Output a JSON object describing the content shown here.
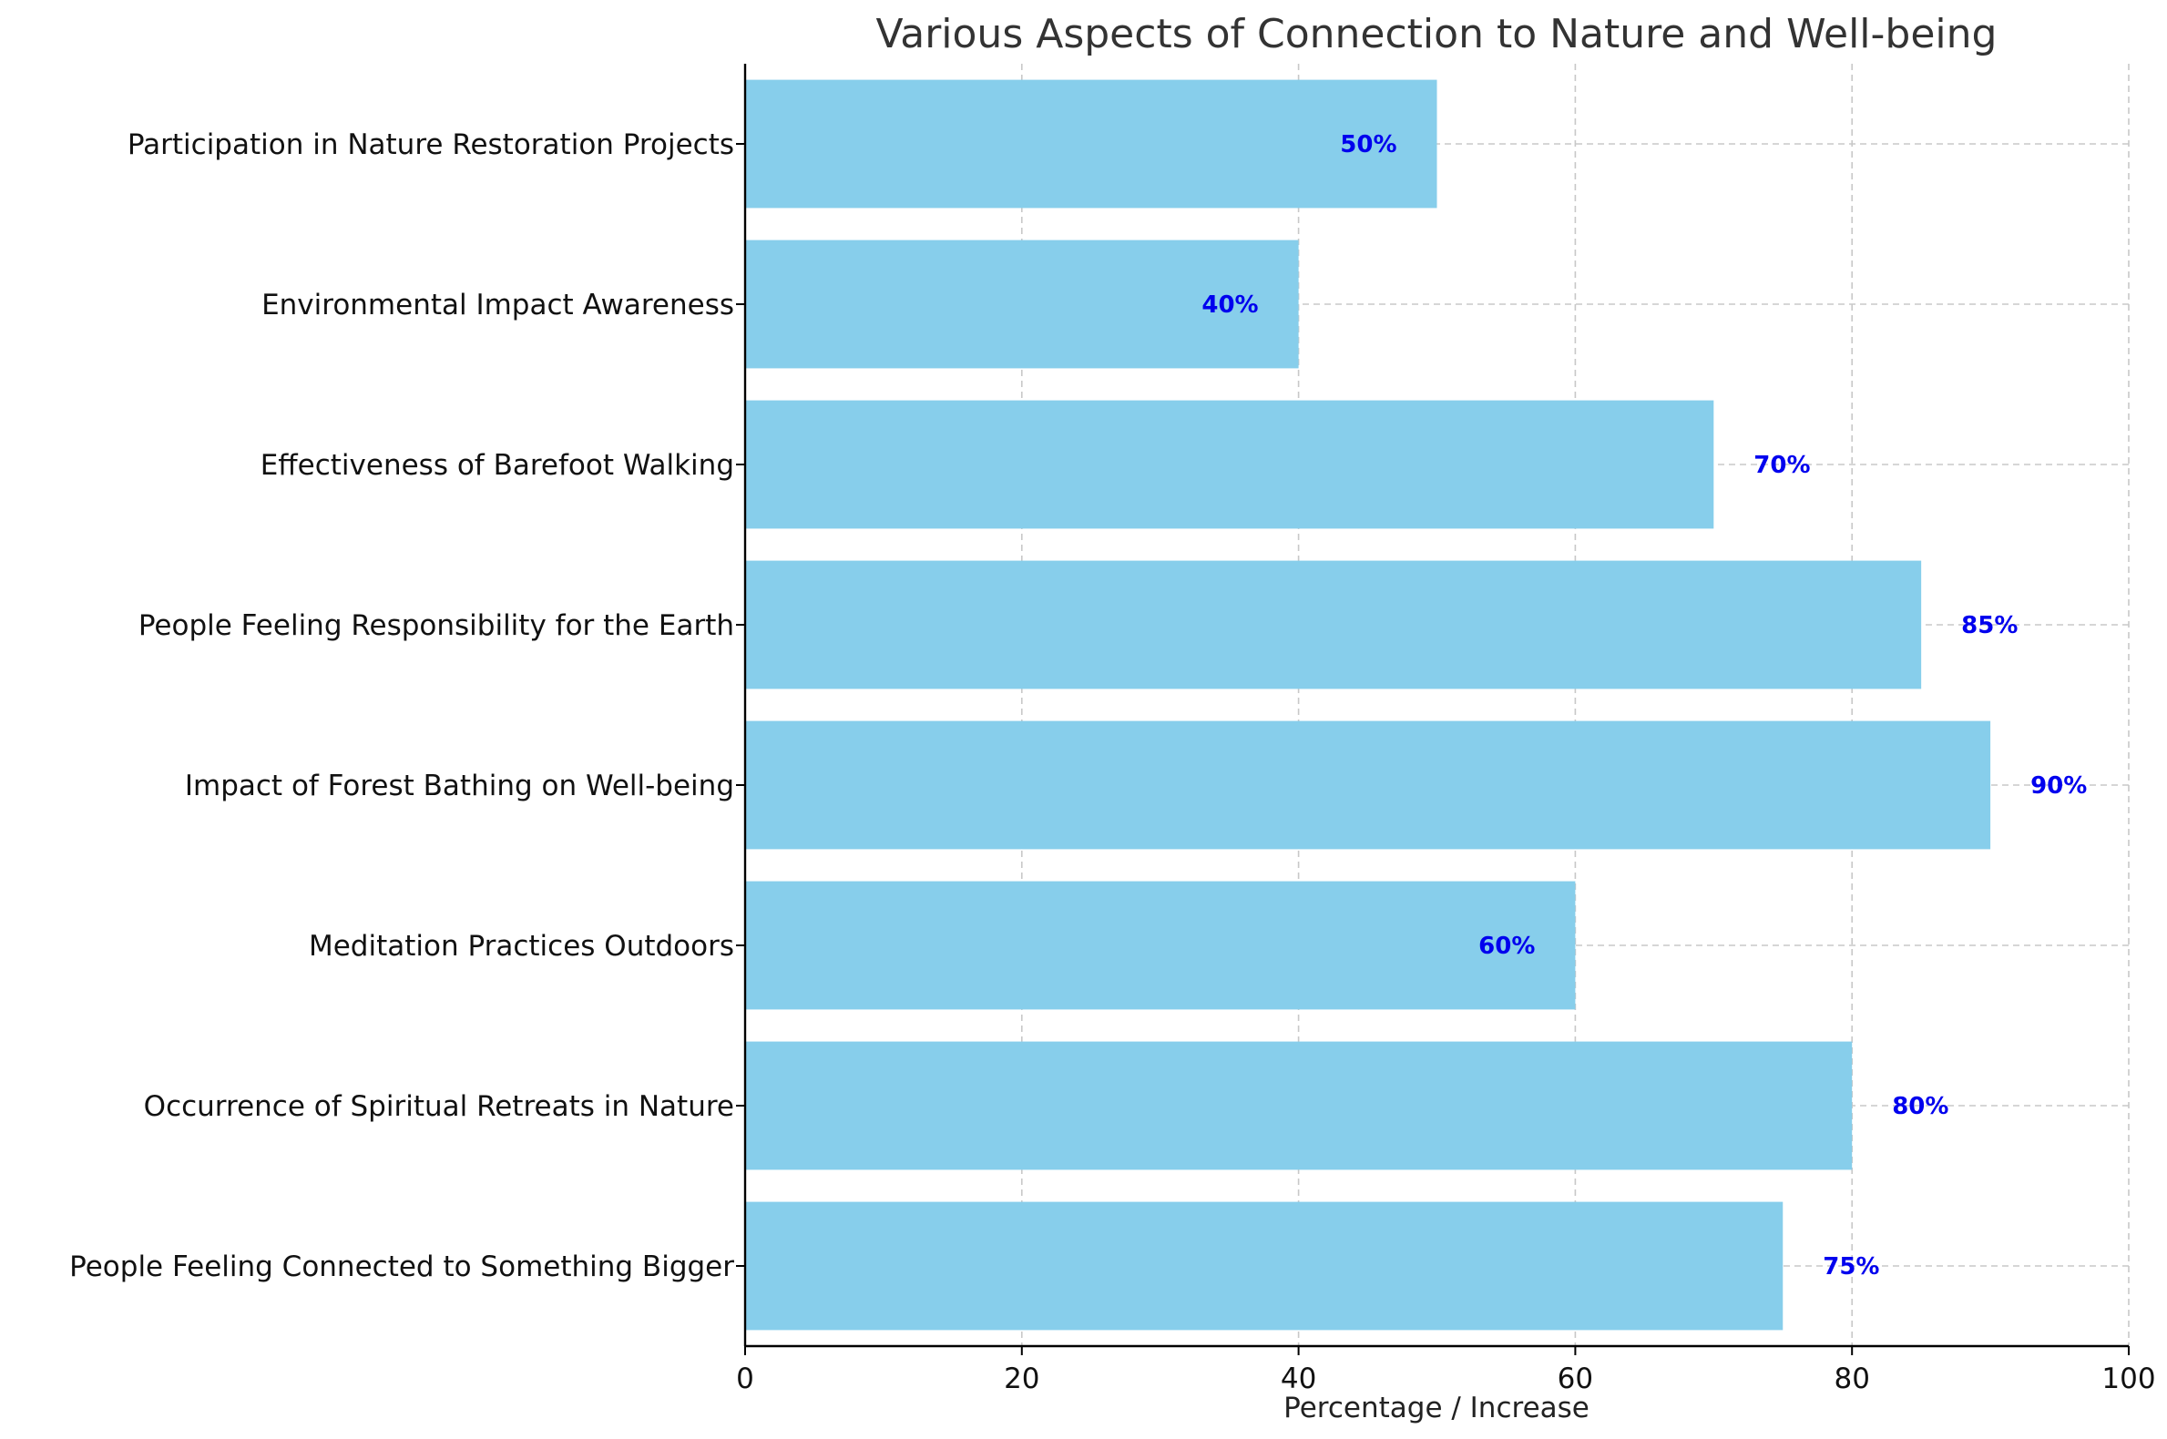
{
  "chart_data": {
    "type": "bar",
    "orientation": "horizontal",
    "title": "Various Aspects of Connection to Nature and Well-being",
    "xlabel": "Percentage / Increase",
    "ylabel": "",
    "xlim": [
      0,
      100
    ],
    "xticks": [
      0,
      20,
      40,
      60,
      80,
      100
    ],
    "grid": true,
    "categories": [
      "People Feeling Connected to Something Bigger",
      "Occurrence of Spiritual Retreats in Nature",
      "Meditation Practices Outdoors",
      "Impact of Forest Bathing on Well-being",
      "People Feeling Responsibility for the Earth",
      "Effectiveness of Barefoot Walking",
      "Environmental Impact Awareness",
      "Participation in Nature Restoration Projects"
    ],
    "values": [
      75,
      80,
      60,
      90,
      85,
      70,
      40,
      50
    ],
    "data_labels": [
      "75%",
      "80%",
      "60%",
      "90%",
      "85%",
      "70%",
      "40%",
      "50%"
    ],
    "colors": {
      "bar": "#87ceeb",
      "value_label": "#0000ee",
      "grid": "#c8c8c8",
      "axis": "#000000",
      "title": "#333333"
    }
  }
}
